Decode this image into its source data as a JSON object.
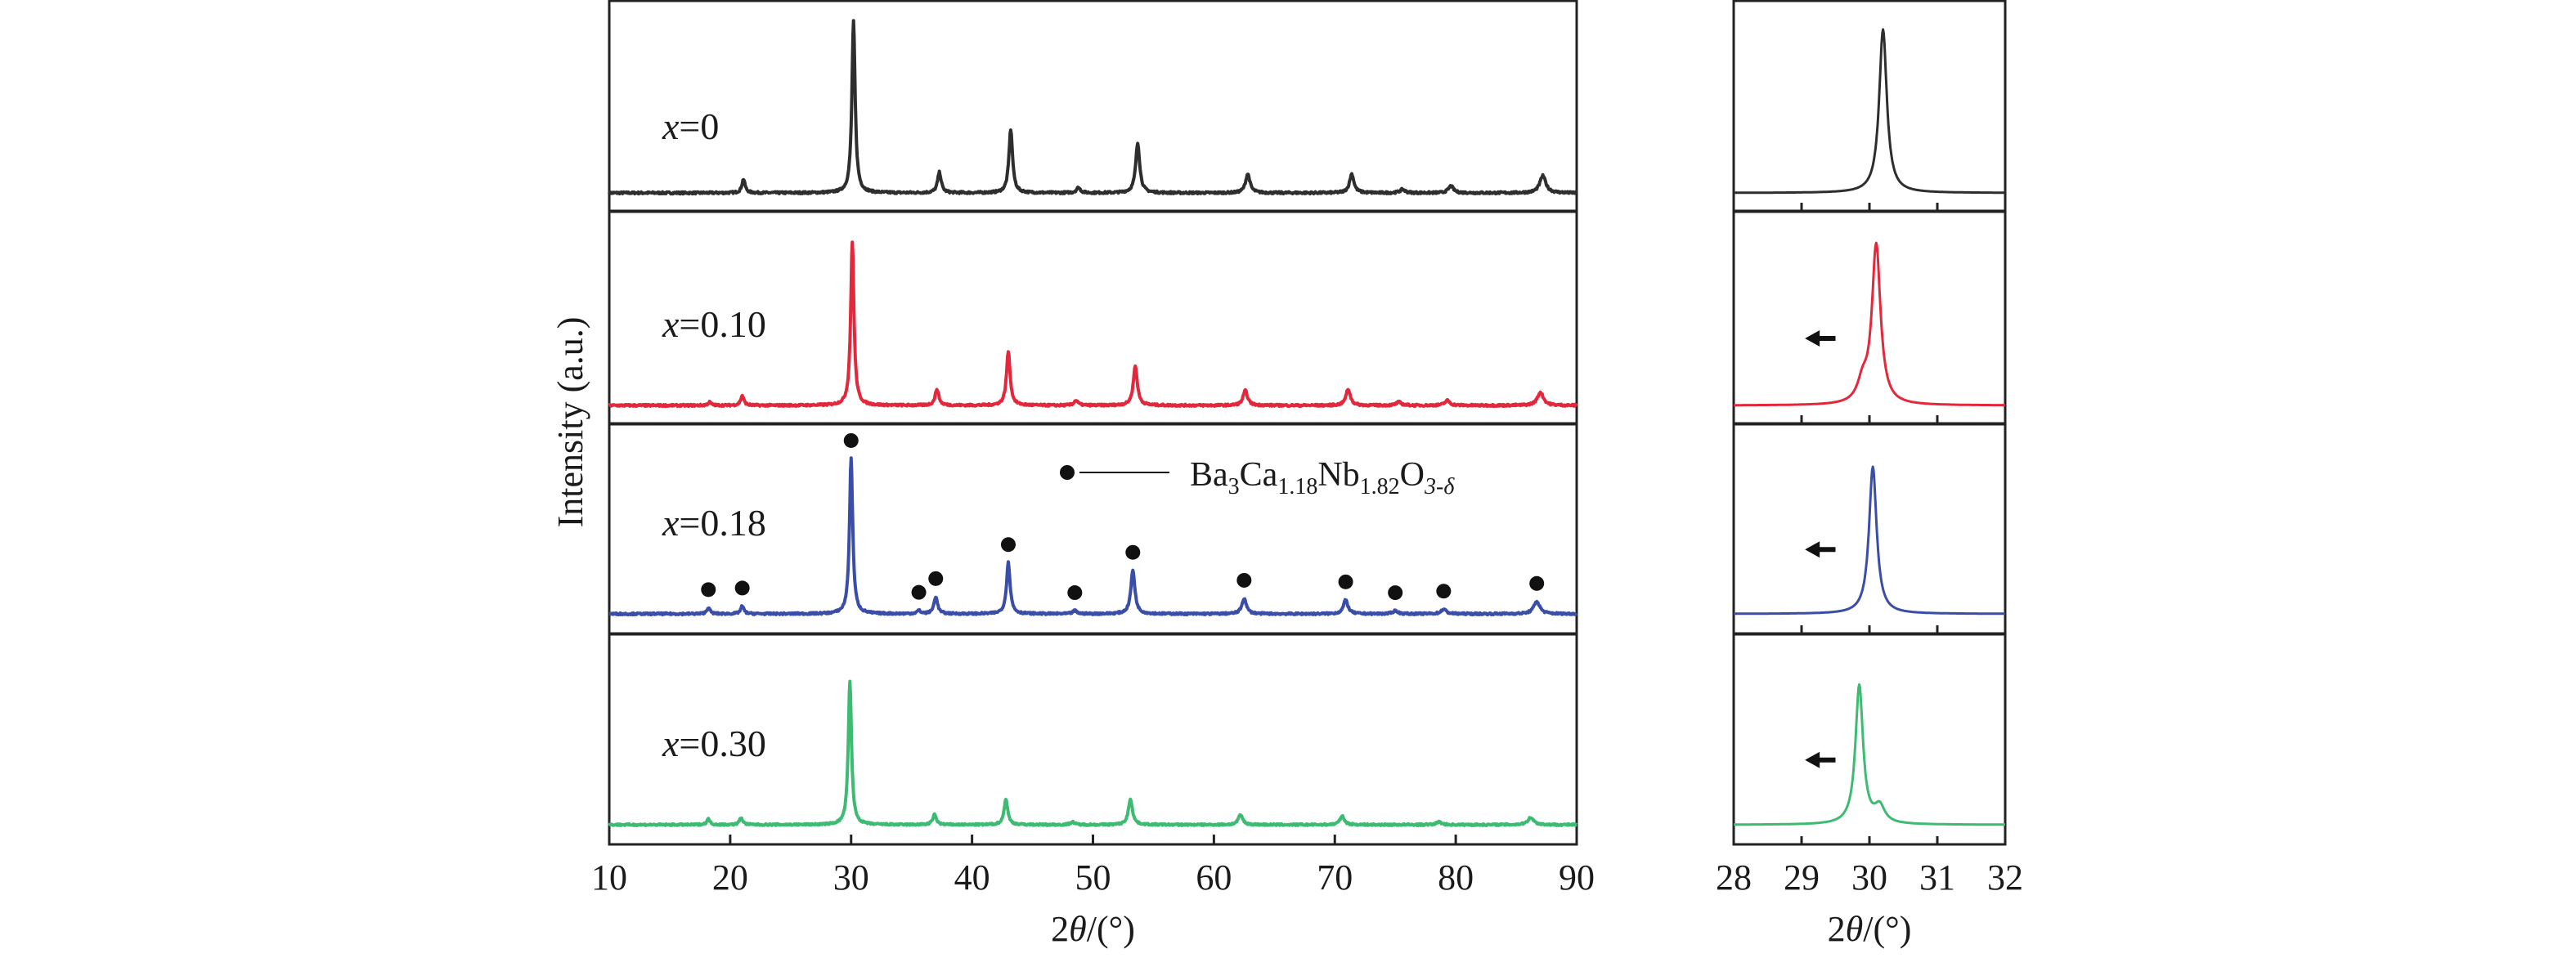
{
  "chart_data": [
    {
      "type": "line",
      "panel": "main",
      "xlabel": "2θ/(°)",
      "ylabel": "Intensity (a.u.)",
      "xlim": [
        10,
        90
      ],
      "xticks": [
        10,
        20,
        30,
        40,
        50,
        60,
        70,
        80,
        90
      ],
      "series": [
        {
          "name": "x=0",
          "label_var": "x",
          "label_val": "=0",
          "color": "#2e2e2e",
          "peaks": [
            {
              "x": 21.1,
              "h": 0.08,
              "w": 0.16
            },
            {
              "x": 30.2,
              "h": 1.0,
              "w": 0.16
            },
            {
              "x": 37.3,
              "h": 0.12,
              "w": 0.18
            },
            {
              "x": 43.2,
              "h": 0.37,
              "w": 0.18
            },
            {
              "x": 48.8,
              "h": 0.03,
              "w": 0.2
            },
            {
              "x": 53.7,
              "h": 0.29,
              "w": 0.2
            },
            {
              "x": 62.8,
              "h": 0.11,
              "w": 0.22
            },
            {
              "x": 71.4,
              "h": 0.11,
              "w": 0.22
            },
            {
              "x": 75.6,
              "h": 0.02,
              "w": 0.25
            },
            {
              "x": 79.6,
              "h": 0.04,
              "w": 0.25
            },
            {
              "x": 87.2,
              "h": 0.1,
              "w": 0.3
            }
          ]
        },
        {
          "name": "x=0.10",
          "label_var": "x",
          "label_val": "=0.10",
          "color": "#e3283c",
          "peaks": [
            {
              "x": 18.3,
              "h": 0.02,
              "w": 0.16
            },
            {
              "x": 21.0,
              "h": 0.06,
              "w": 0.16
            },
            {
              "x": 30.1,
              "h": 1.0,
              "w": 0.16
            },
            {
              "x": 37.1,
              "h": 0.1,
              "w": 0.18
            },
            {
              "x": 43.0,
              "h": 0.33,
              "w": 0.18
            },
            {
              "x": 48.6,
              "h": 0.03,
              "w": 0.2
            },
            {
              "x": 53.5,
              "h": 0.24,
              "w": 0.2
            },
            {
              "x": 62.6,
              "h": 0.09,
              "w": 0.22
            },
            {
              "x": 71.1,
              "h": 0.1,
              "w": 0.22
            },
            {
              "x": 75.3,
              "h": 0.02,
              "w": 0.25
            },
            {
              "x": 79.3,
              "h": 0.03,
              "w": 0.25
            },
            {
              "x": 87.0,
              "h": 0.08,
              "w": 0.3
            }
          ]
        },
        {
          "name": "x=0.18",
          "label_var": "x",
          "label_val": "=0.18",
          "color": "#3a4ea8",
          "peaks": [
            {
              "x": 18.2,
              "h": 0.04,
              "w": 0.16
            },
            {
              "x": 21.0,
              "h": 0.05,
              "w": 0.16
            },
            {
              "x": 30.0,
              "h": 1.0,
              "w": 0.16
            },
            {
              "x": 35.6,
              "h": 0.02,
              "w": 0.18
            },
            {
              "x": 37.0,
              "h": 0.11,
              "w": 0.18
            },
            {
              "x": 43.0,
              "h": 0.33,
              "w": 0.18
            },
            {
              "x": 48.5,
              "h": 0.02,
              "w": 0.2
            },
            {
              "x": 53.3,
              "h": 0.28,
              "w": 0.2
            },
            {
              "x": 62.5,
              "h": 0.1,
              "w": 0.22
            },
            {
              "x": 70.9,
              "h": 0.09,
              "w": 0.22
            },
            {
              "x": 75.0,
              "h": 0.02,
              "w": 0.25
            },
            {
              "x": 79.0,
              "h": 0.03,
              "w": 0.25
            },
            {
              "x": 86.7,
              "h": 0.08,
              "w": 0.3
            }
          ]
        },
        {
          "name": "x=0.30",
          "label_var": "x",
          "label_val": "=0.30",
          "color": "#3dbb72",
          "peaks": [
            {
              "x": 18.2,
              "h": 0.04,
              "w": 0.16
            },
            {
              "x": 20.9,
              "h": 0.05,
              "w": 0.16
            },
            {
              "x": 29.9,
              "h": 1.0,
              "w": 0.16
            },
            {
              "x": 36.9,
              "h": 0.07,
              "w": 0.18
            },
            {
              "x": 42.8,
              "h": 0.18,
              "w": 0.18
            },
            {
              "x": 48.3,
              "h": 0.02,
              "w": 0.2
            },
            {
              "x": 53.1,
              "h": 0.18,
              "w": 0.2
            },
            {
              "x": 62.2,
              "h": 0.07,
              "w": 0.22
            },
            {
              "x": 70.6,
              "h": 0.06,
              "w": 0.22
            },
            {
              "x": 78.6,
              "h": 0.02,
              "w": 0.25
            },
            {
              "x": 86.2,
              "h": 0.05,
              "w": 0.3
            }
          ]
        }
      ],
      "markers": {
        "symbol": "●",
        "series": "x=0.18",
        "positions": [
          18.2,
          21.0,
          30.0,
          35.6,
          37.0,
          43.0,
          48.5,
          53.3,
          62.5,
          70.9,
          75.0,
          79.0,
          86.7
        ]
      },
      "legend": {
        "symbol": "●",
        "parts": [
          {
            "text": "Ba",
            "sub": false
          },
          {
            "text": "3",
            "sub": true
          },
          {
            "text": "Ca",
            "sub": false
          },
          {
            "text": "1.18",
            "sub": true
          },
          {
            "text": "Nb",
            "sub": false
          },
          {
            "text": "1.82",
            "sub": true
          },
          {
            "text": "O",
            "sub": false
          },
          {
            "text": "3-δ",
            "sub": true
          }
        ]
      }
    },
    {
      "type": "line",
      "panel": "zoom",
      "xlabel": "2θ/(°)",
      "xlim": [
        28,
        32
      ],
      "xticks": [
        28,
        29,
        30,
        31,
        32
      ],
      "series": [
        {
          "name": "x=0",
          "color": "#2e2e2e",
          "center": 30.2,
          "width": 0.08,
          "arrow": false
        },
        {
          "name": "x=0.10",
          "color": "#e3283c",
          "center": 30.1,
          "width": 0.09,
          "shoulder": 29.9,
          "arrow": true
        },
        {
          "name": "x=0.18",
          "color": "#3a4ea8",
          "center": 30.05,
          "width": 0.08,
          "arrow": true
        },
        {
          "name": "x=0.30",
          "color": "#3dbb72",
          "center": 29.85,
          "width": 0.08,
          "shoulder": 30.15,
          "arrow": true
        }
      ]
    }
  ]
}
